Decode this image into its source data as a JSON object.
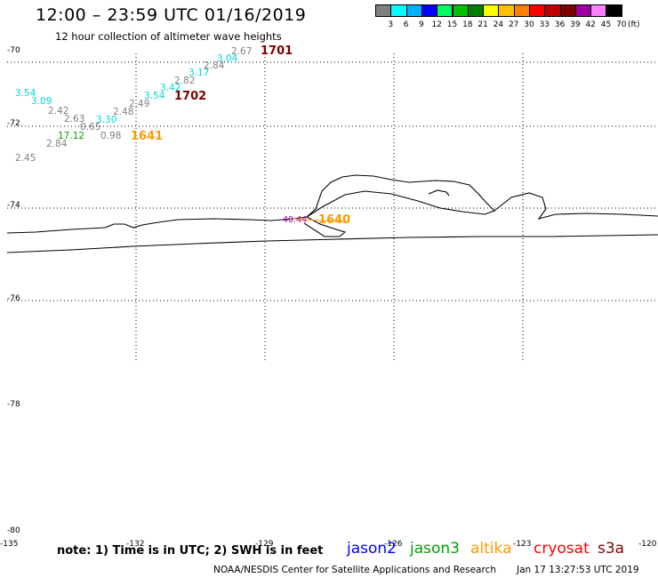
{
  "header": {
    "title": "12:00 – 23:59 UTC 01/16/2019",
    "subtitle": "12 hour collection of altimeter wave heights"
  },
  "colorbar": {
    "unit": "(ft)",
    "items": [
      {
        "label": "3",
        "color": "#808080"
      },
      {
        "label": "6",
        "color": "#00ffff"
      },
      {
        "label": "9",
        "color": "#00b0ff"
      },
      {
        "label": "12",
        "color": "#0000ff"
      },
      {
        "label": "15",
        "color": "#00ff60"
      },
      {
        "label": "18",
        "color": "#00c000"
      },
      {
        "label": "21",
        "color": "#008000"
      },
      {
        "label": "24",
        "color": "#ffff00"
      },
      {
        "label": "27",
        "color": "#ffc000"
      },
      {
        "label": "30",
        "color": "#ff8000"
      },
      {
        "label": "33",
        "color": "#ff0000"
      },
      {
        "label": "36",
        "color": "#c00000"
      },
      {
        "label": "39",
        "color": "#800000"
      },
      {
        "label": "42",
        "color": "#a000a0"
      },
      {
        "label": "45",
        "color": "#ff80ff"
      },
      {
        "label": "70",
        "color": "#000000"
      }
    ]
  },
  "axes": {
    "lat_labels": [
      "-70",
      "-72",
      "-74",
      "-76",
      "-78",
      "-80"
    ],
    "lon_labels": [
      "-135",
      "-132",
      "-129",
      "-126",
      "-123",
      "-120"
    ]
  },
  "observations": [
    {
      "text": "1701",
      "color": "#800000"
    },
    {
      "text": "2.67",
      "color": "#808080"
    },
    {
      "text": "3.04",
      "color": "#00d8d8"
    },
    {
      "text": "2.84",
      "color": "#808080"
    },
    {
      "text": "3.17",
      "color": "#00d8d8"
    },
    {
      "text": "2.82",
      "color": "#808080"
    },
    {
      "text": "3.42",
      "color": "#00d8d8"
    },
    {
      "text": "3.54",
      "color": "#00d8d8"
    },
    {
      "text": "1702",
      "color": "#800000"
    },
    {
      "text": "2.49",
      "color": "#808080"
    },
    {
      "text": "3.54",
      "color": "#00d8d8"
    },
    {
      "text": "3.09",
      "color": "#00d8d8"
    },
    {
      "text": "2.42",
      "color": "#808080"
    },
    {
      "text": "2.48",
      "color": "#808080"
    },
    {
      "text": "2.63",
      "color": "#808080"
    },
    {
      "text": "3.30",
      "color": "#00d8d8"
    },
    {
      "text": "0.65",
      "color": "#808080"
    },
    {
      "text": "17.12",
      "color": "#00a000"
    },
    {
      "text": "0.98",
      "color": "#808080"
    },
    {
      "text": "1641",
      "color": "#ff9900"
    },
    {
      "text": "2.84",
      "color": "#808080"
    },
    {
      "text": "2.45",
      "color": "#808080"
    },
    {
      "text": "40.44",
      "color": "#a000a0"
    },
    {
      "text": "1640",
      "color": "#ff9900"
    }
  ],
  "note": "note: 1) Time is in UTC; 2) SWH is in feet",
  "legend": [
    {
      "text": "jason2",
      "color": "#0000ff"
    },
    {
      "text": "jason3",
      "color": "#00a000"
    },
    {
      "text": "altika",
      "color": "#ff9900"
    },
    {
      "text": "cryosat",
      "color": "#ff0000"
    },
    {
      "text": "s3a",
      "color": "#800000"
    }
  ],
  "footer": {
    "credit": "NOAA/NESDIS Center for Satellite Applications and Research",
    "timestamp": "Jan 17 13:27:53 UTC 2019"
  }
}
